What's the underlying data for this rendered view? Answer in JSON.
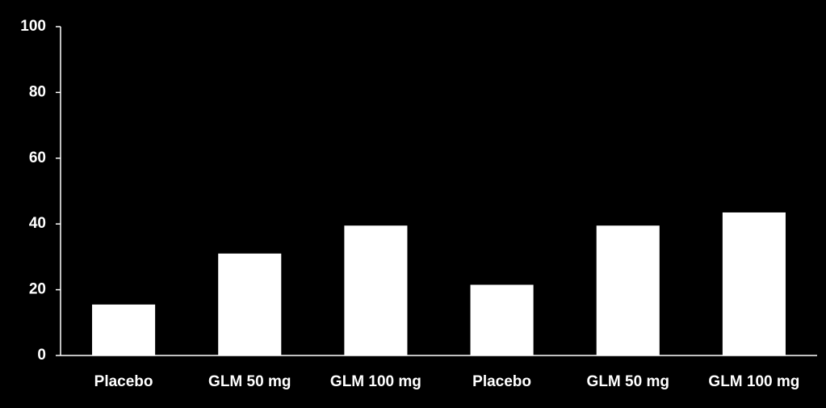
{
  "chart_data": {
    "type": "bar",
    "categories": [
      "Placebo",
      "GLM 50 mg",
      "GLM 100 mg",
      "Placebo",
      "GLM 50 mg",
      "GLM 100 mg"
    ],
    "values": [
      15.5,
      31,
      39.5,
      21.5,
      39.5,
      43.5
    ],
    "color": "#ffffff",
    "ylim": [
      0,
      100
    ],
    "yticks": [
      0,
      20,
      40,
      60,
      80,
      100
    ],
    "grid": false
  }
}
